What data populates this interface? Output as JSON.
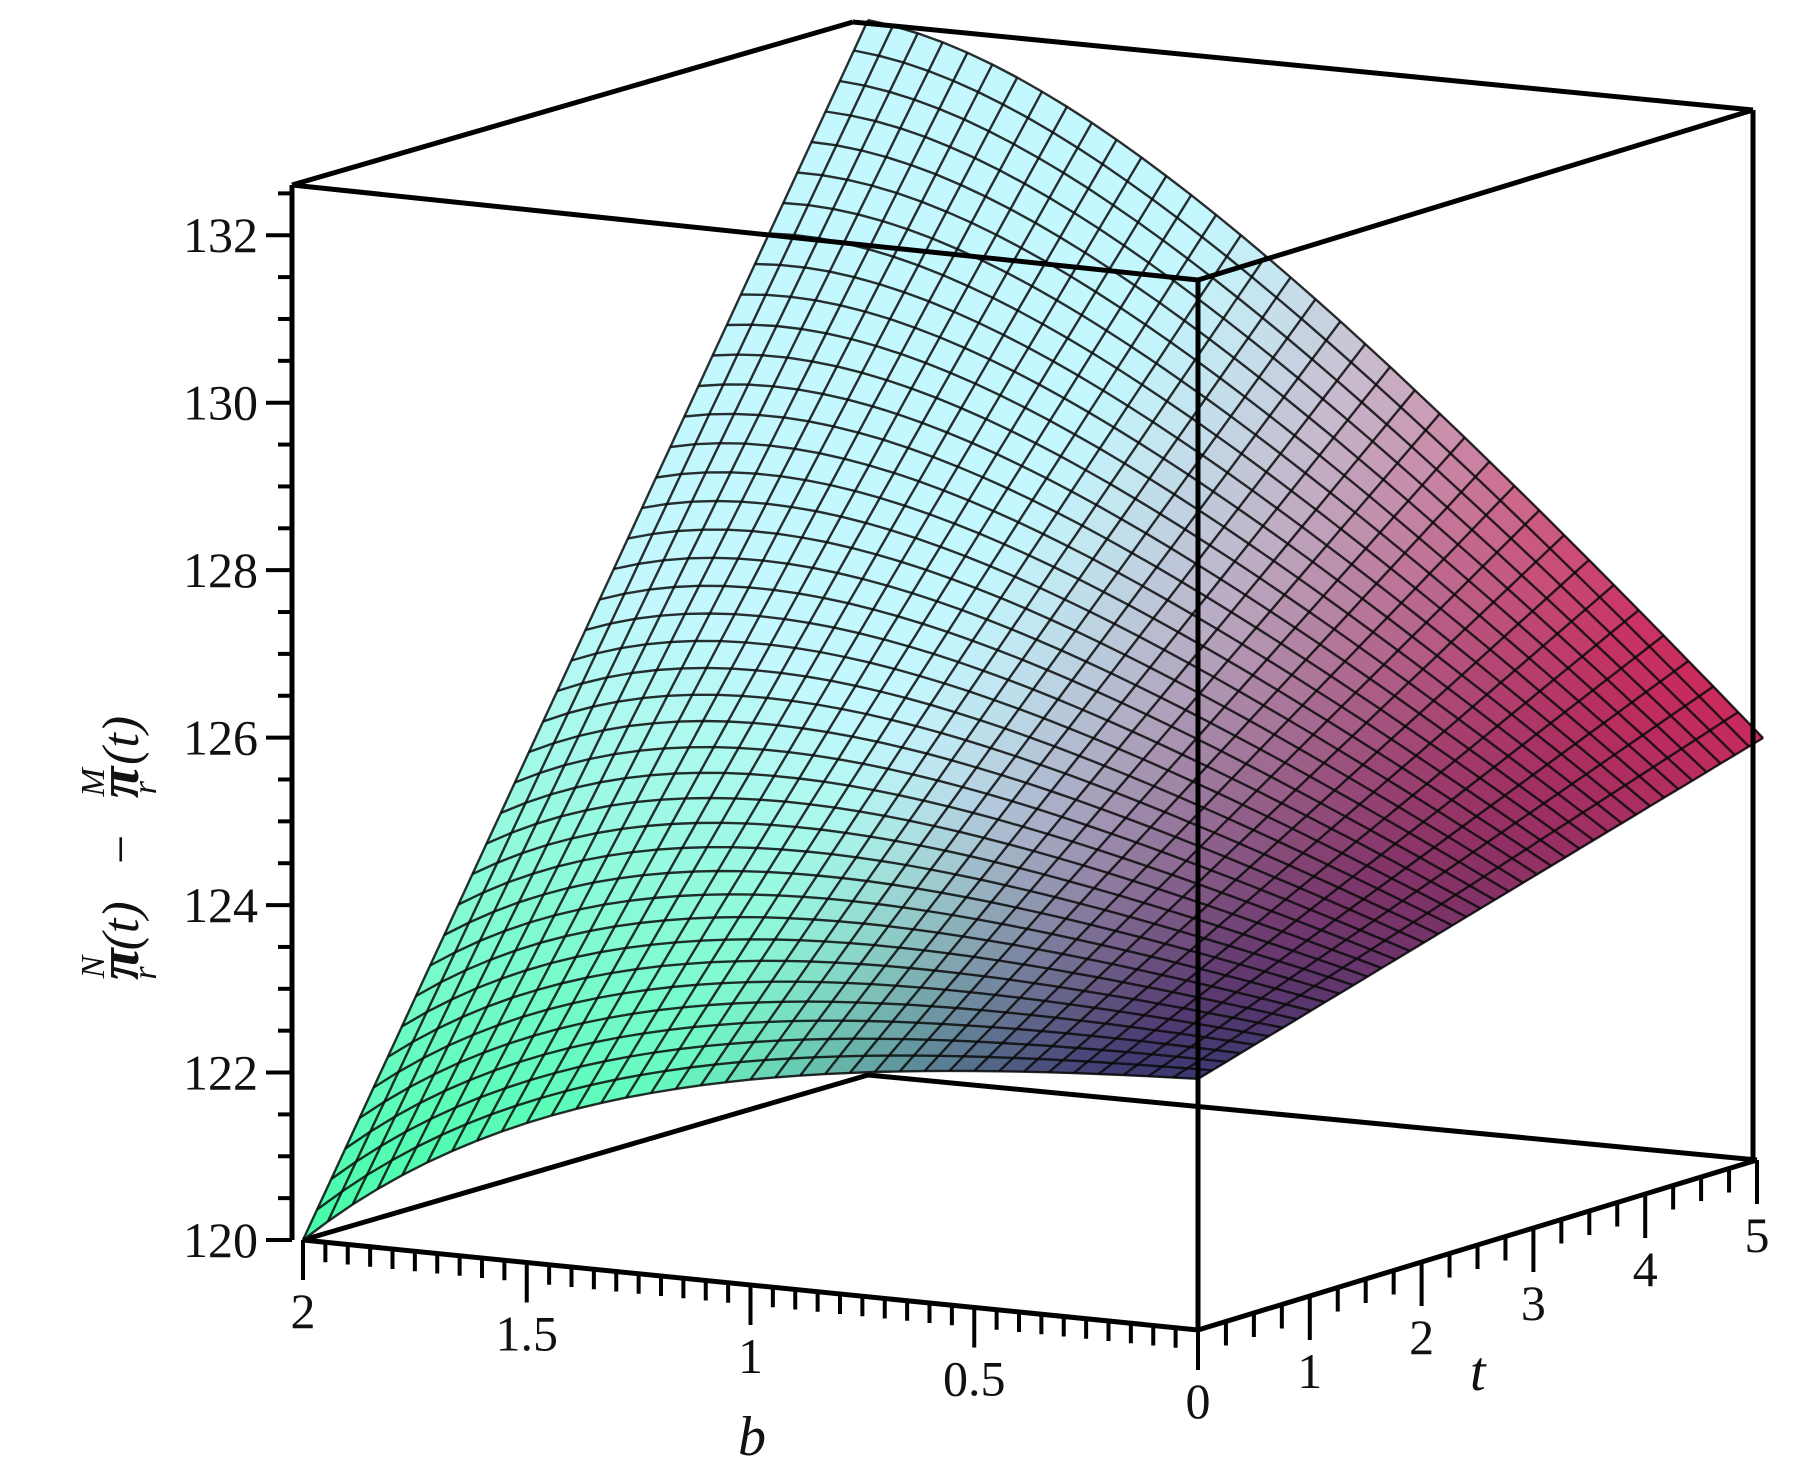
{
  "chart_data": {
    "type": "surface3d",
    "z_axis_label": {
      "part1_symbol": "π",
      "part1_sup": "N",
      "part1_sub": "r",
      "part1_arg": "(t)",
      "minus": "−",
      "part2_symbol": "π",
      "part2_sup": "M",
      "part2_sub": "r",
      "part2_arg": "(t)"
    },
    "b_axis": {
      "label": "b",
      "range": [
        0,
        2
      ],
      "ticks": [
        "2",
        "1.5",
        "1",
        "0.5",
        "0"
      ],
      "tick_values": [
        2,
        1.5,
        1,
        0.5,
        0
      ]
    },
    "t_axis": {
      "label": "t",
      "range": [
        0,
        5
      ],
      "ticks": [
        "1",
        "2",
        "3",
        "4",
        "5"
      ],
      "tick_values": [
        1,
        2,
        3,
        4,
        5
      ]
    },
    "z_axis": {
      "range": [
        120,
        132.6
      ],
      "ticks": [
        "120",
        "122",
        "124",
        "126",
        "128",
        "130",
        "132"
      ],
      "tick_values": [
        120,
        122,
        124,
        126,
        128,
        130,
        132
      ]
    },
    "surface_samples": [
      {
        "b": 2,
        "t": 0,
        "z": 120.0
      },
      {
        "b": 0,
        "t": 0,
        "z": 123.0
      },
      {
        "b": 2,
        "t": 5,
        "z": 132.6
      },
      {
        "b": 0,
        "t": 5,
        "z": 125.1
      }
    ],
    "colors": {
      "low": "#00ff7a",
      "mid": "#c4f8ff",
      "dark": "#3a3a72",
      "high": "#d8295a"
    },
    "grid": true,
    "box": true
  }
}
